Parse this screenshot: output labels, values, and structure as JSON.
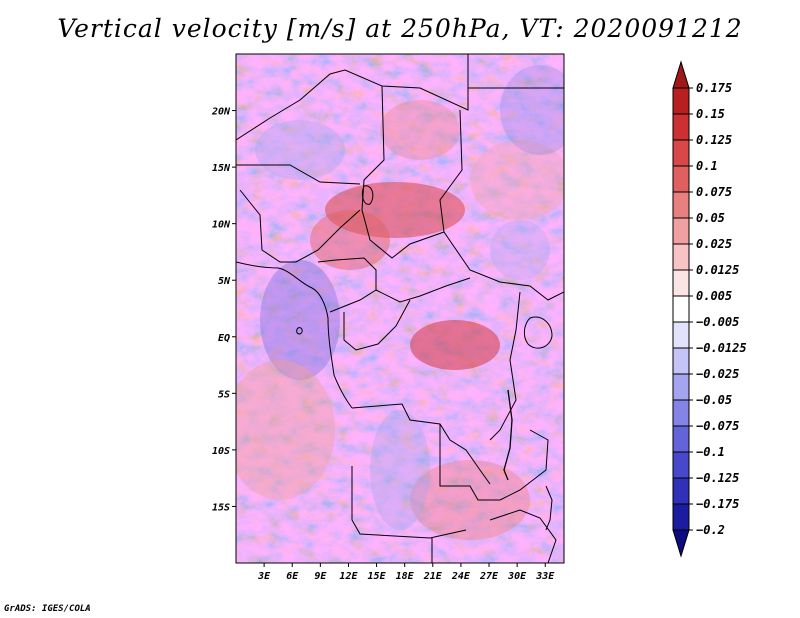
{
  "chart_data": {
    "type": "heatmap",
    "title": "Vertical velocity [m/s] at 250hPa, VT: 2020091212",
    "variable": "Vertical velocity",
    "units": "m/s",
    "level": "250hPa",
    "valid_time": "2020091212",
    "x_axis": {
      "tick_labels": [
        "3E",
        "6E",
        "9E",
        "12E",
        "15E",
        "18E",
        "21E",
        "24E",
        "27E",
        "30E",
        "33E"
      ],
      "tick_values": [
        3,
        6,
        9,
        12,
        15,
        18,
        21,
        24,
        27,
        30,
        33
      ],
      "range": [
        0,
        35
      ]
    },
    "y_axis": {
      "tick_labels": [
        "20N",
        "15N",
        "10N",
        "5N",
        "EQ",
        "5S",
        "10S",
        "15S"
      ],
      "tick_values": [
        20,
        15,
        10,
        5,
        0,
        -5,
        -10,
        -15
      ],
      "range": [
        -20,
        25
      ]
    },
    "colorbar": {
      "levels": [
        0.175,
        0.15,
        0.125,
        0.1,
        0.075,
        0.05,
        0.025,
        0.0125,
        0.005,
        -0.005,
        -0.0125,
        -0.025,
        -0.05,
        -0.075,
        -0.1,
        -0.125,
        -0.175,
        -0.2
      ],
      "labels": [
        "0.175",
        "0.15",
        "0.125",
        "0.1",
        "0.075",
        "0.05",
        "0.025",
        "0.0125",
        "0.005",
        "−0.005",
        "−0.0125",
        "−0.025",
        "−0.05",
        "−0.075",
        "−0.1",
        "−0.125",
        "−0.175",
        "−0.2"
      ],
      "colors": [
        "#a01818",
        "#b82020",
        "#cc3030",
        "#d84848",
        "#e06060",
        "#e88080",
        "#f0a0a0",
        "#f6c4c4",
        "#fbe4e4",
        "#ffffff",
        "#e2e2fb",
        "#c4c4f6",
        "#a4a4ef",
        "#8484e6",
        "#6464da",
        "#4848cc",
        "#3030b8",
        "#1c1ca0",
        "#0c0c80"
      ]
    },
    "regions_of_note": [
      {
        "label": "upward motion maximum",
        "lon": 14,
        "lat": 11,
        "sign": "positive"
      },
      {
        "label": "upward motion maximum",
        "lon": 27,
        "lat": 0,
        "sign": "positive"
      }
    ]
  },
  "credit": "GrADS: IGES/COLA"
}
